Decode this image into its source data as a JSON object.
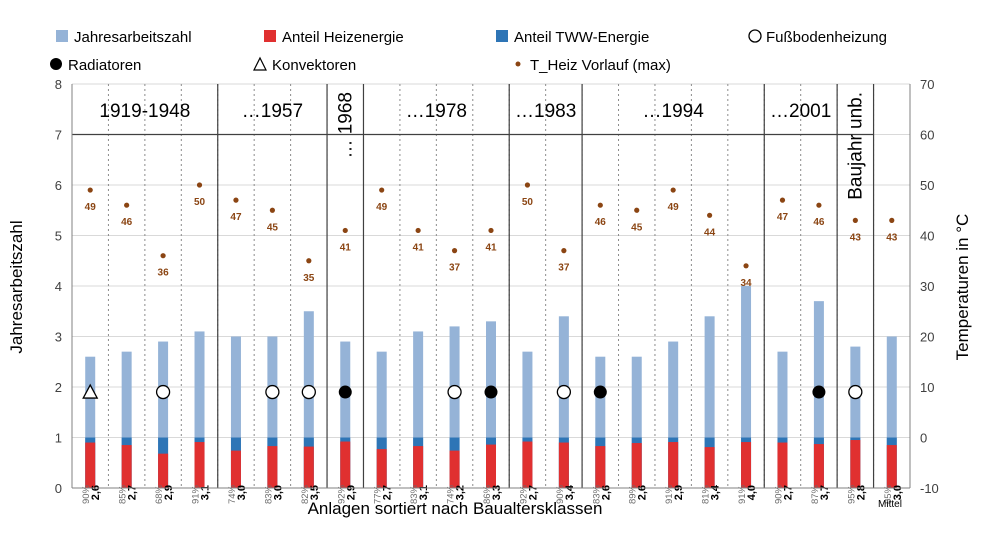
{
  "chart_data": {
    "type": "bar",
    "xlabel": "Anlagen sortiert nach Baualtersklassen",
    "ylabel": "Jahresarbeitszahl",
    "y2label": "Temperaturen in °C",
    "ylim": [
      0,
      8
    ],
    "y2lim": [
      -10,
      70
    ],
    "yticks": [
      "0",
      "1",
      "2",
      "3",
      "4",
      "5",
      "6",
      "7",
      "8"
    ],
    "y2ticks": [
      "-10",
      "0",
      "10",
      "20",
      "30",
      "40",
      "50",
      "60",
      "70"
    ],
    "mittel_label": "Mittel",
    "legend": [
      {
        "name": "Jahresarbeitszahl",
        "symbol": "bar",
        "color": "#95b3d7"
      },
      {
        "name": "Anteil Heizenergie",
        "symbol": "bar",
        "color": "#e03030"
      },
      {
        "name": "Anteil TWW-Energie",
        "symbol": "bar",
        "color": "#2e75b6"
      },
      {
        "name": "Fußbodenheizung",
        "symbol": "open-circle"
      },
      {
        "name": "Radiatoren",
        "symbol": "filled-circle"
      },
      {
        "name": "Konvektoren",
        "symbol": "triangle"
      },
      {
        "name": "T_Heiz Vorlauf (max)",
        "symbol": "dot",
        "color": "#8b4513"
      }
    ],
    "groups": [
      {
        "label": "1919-1948",
        "vertical": false
      },
      {
        "label": "…1957",
        "vertical": false
      },
      {
        "label": "… 1968",
        "vertical": true
      },
      {
        "label": "…1978",
        "vertical": false
      },
      {
        "label": "…1983",
        "vertical": false
      },
      {
        "label": "…1994",
        "vertical": false
      },
      {
        "label": "…2001",
        "vertical": false
      },
      {
        "label": "Baujahr unb.",
        "vertical": true
      }
    ],
    "points": [
      {
        "group": 0,
        "jaz": 2.6,
        "jaz_label": "2,6",
        "heiz_pct": "90%",
        "heiz": 0.9,
        "temp": 49,
        "heating": "Konvektoren"
      },
      {
        "group": 0,
        "jaz": 2.7,
        "jaz_label": "2,7",
        "heiz_pct": "85%",
        "heiz": 0.85,
        "temp": 46,
        "heating": null
      },
      {
        "group": 0,
        "jaz": 2.9,
        "jaz_label": "2,9",
        "heiz_pct": "68%",
        "heiz": 0.68,
        "temp": 36,
        "heating": "Fußbodenheizung"
      },
      {
        "group": 0,
        "jaz": 3.1,
        "jaz_label": "3,1",
        "heiz_pct": "91%",
        "heiz": 0.91,
        "temp": 50,
        "heating": null
      },
      {
        "group": 1,
        "jaz": 3.0,
        "jaz_label": "3,0",
        "heiz_pct": "74%",
        "heiz": 0.74,
        "temp": 47,
        "heating": null
      },
      {
        "group": 1,
        "jaz": 3.0,
        "jaz_label": "3,0",
        "heiz_pct": "83%",
        "heiz": 0.83,
        "temp": 45,
        "heating": "Fußbodenheizung"
      },
      {
        "group": 1,
        "jaz": 3.5,
        "jaz_label": "3,5",
        "heiz_pct": "82%",
        "heiz": 0.82,
        "temp": 35,
        "heating": "Fußbodenheizung"
      },
      {
        "group": 2,
        "jaz": 2.9,
        "jaz_label": "2,9",
        "heiz_pct": "92%",
        "heiz": 0.92,
        "temp": 41,
        "heating": "Radiatoren"
      },
      {
        "group": 3,
        "jaz": 2.7,
        "jaz_label": "2,7",
        "heiz_pct": "77%",
        "heiz": 0.77,
        "temp": 49,
        "heating": null
      },
      {
        "group": 3,
        "jaz": 3.1,
        "jaz_label": "3,1",
        "heiz_pct": "83%",
        "heiz": 0.83,
        "temp": 41,
        "heating": null
      },
      {
        "group": 3,
        "jaz": 3.2,
        "jaz_label": "3,2",
        "heiz_pct": "74%",
        "heiz": 0.74,
        "temp": 37,
        "heating": "Fußbodenheizung"
      },
      {
        "group": 3,
        "jaz": 3.3,
        "jaz_label": "3,3",
        "heiz_pct": "86%",
        "heiz": 0.86,
        "temp": 41,
        "heating": "Radiatoren"
      },
      {
        "group": 4,
        "jaz": 2.7,
        "jaz_label": "2,7",
        "heiz_pct": "92%",
        "heiz": 0.92,
        "temp": 50,
        "heating": null
      },
      {
        "group": 4,
        "jaz": 3.4,
        "jaz_label": "3,4",
        "heiz_pct": "90%",
        "heiz": 0.9,
        "temp": 37,
        "heating": "Fußbodenheizung"
      },
      {
        "group": 5,
        "jaz": 2.6,
        "jaz_label": "2,6",
        "heiz_pct": "83%",
        "heiz": 0.83,
        "temp": 46,
        "heating": "Radiatoren"
      },
      {
        "group": 5,
        "jaz": 2.6,
        "jaz_label": "2,6",
        "heiz_pct": "89%",
        "heiz": 0.89,
        "temp": 45,
        "heating": null
      },
      {
        "group": 5,
        "jaz": 2.9,
        "jaz_label": "2,9",
        "heiz_pct": "91%",
        "heiz": 0.91,
        "temp": 49,
        "heating": null
      },
      {
        "group": 5,
        "jaz": 3.4,
        "jaz_label": "3,4",
        "heiz_pct": "81%",
        "heiz": 0.81,
        "temp": 44,
        "heating": null
      },
      {
        "group": 5,
        "jaz": 4.0,
        "jaz_label": "4,0",
        "heiz_pct": "91%",
        "heiz": 0.91,
        "temp": 34,
        "heating": null
      },
      {
        "group": 6,
        "jaz": 2.7,
        "jaz_label": "2,7",
        "heiz_pct": "90%",
        "heiz": 0.9,
        "temp": 47,
        "heating": null
      },
      {
        "group": 6,
        "jaz": 3.7,
        "jaz_label": "3,7",
        "heiz_pct": "87%",
        "heiz": 0.87,
        "temp": 46,
        "heating": "Radiatoren"
      },
      {
        "group": 7,
        "jaz": 2.8,
        "jaz_label": "2,8",
        "heiz_pct": "95%",
        "heiz": 0.95,
        "temp": 43,
        "heating": "Fußbodenheizung"
      },
      {
        "group": 8,
        "jaz": 3.0,
        "jaz_label": "3,0",
        "heiz_pct": "85%",
        "heiz": 0.85,
        "temp": 43,
        "heating": null,
        "mittel": true
      }
    ]
  }
}
